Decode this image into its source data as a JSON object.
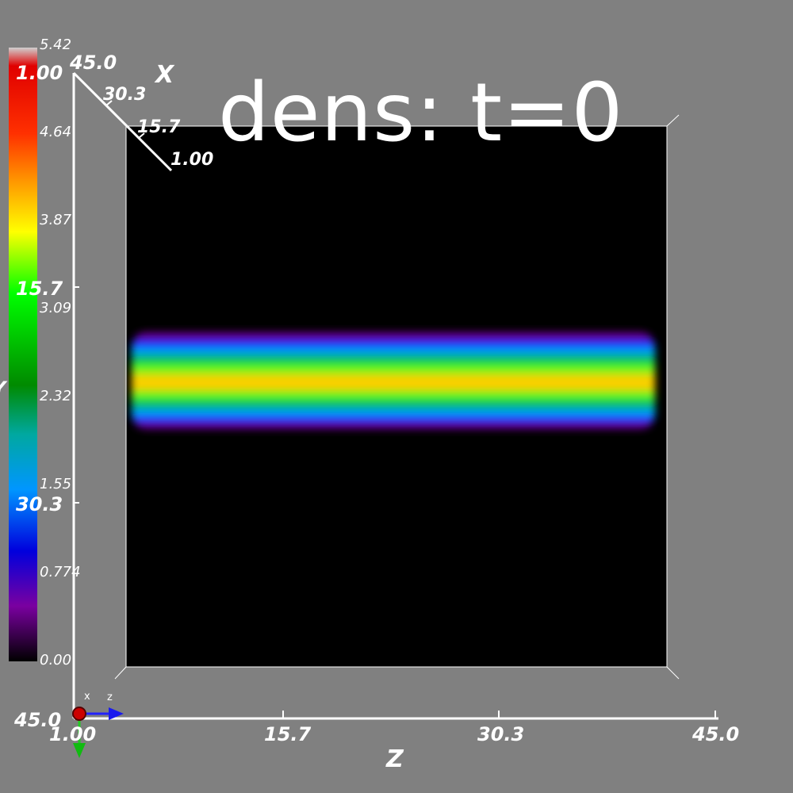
{
  "title": "dens: t=0",
  "colorbar": {
    "ticks": [
      "5.42",
      "4.64",
      "3.87",
      "3.09",
      "2.32",
      "1.55",
      "0.774",
      "0.00"
    ],
    "colors": [
      "#d8d8d8",
      "#ff0000",
      "#ff8c00",
      "#ffff00",
      "#00ff00",
      "#008000",
      "#00aaaa",
      "#00aaff",
      "#0000ff",
      "#6000a0",
      "#000000"
    ]
  },
  "axes": {
    "z_name": "Z",
    "z_ticks": [
      "1.00",
      "15.7",
      "30.3",
      "45.0"
    ],
    "x_name": "X",
    "x_ticks": [
      "45.0",
      "30.3",
      "15.7",
      "1.00"
    ],
    "y_name": "Y",
    "y_ticks": [
      "1.00",
      "15.7",
      "30.3",
      "45.0"
    ]
  },
  "triad": {
    "x_label": "x",
    "z_label": "z"
  },
  "colors": {
    "background": "#808080",
    "domain": "#000000",
    "box_edge": "#ffffff"
  }
}
